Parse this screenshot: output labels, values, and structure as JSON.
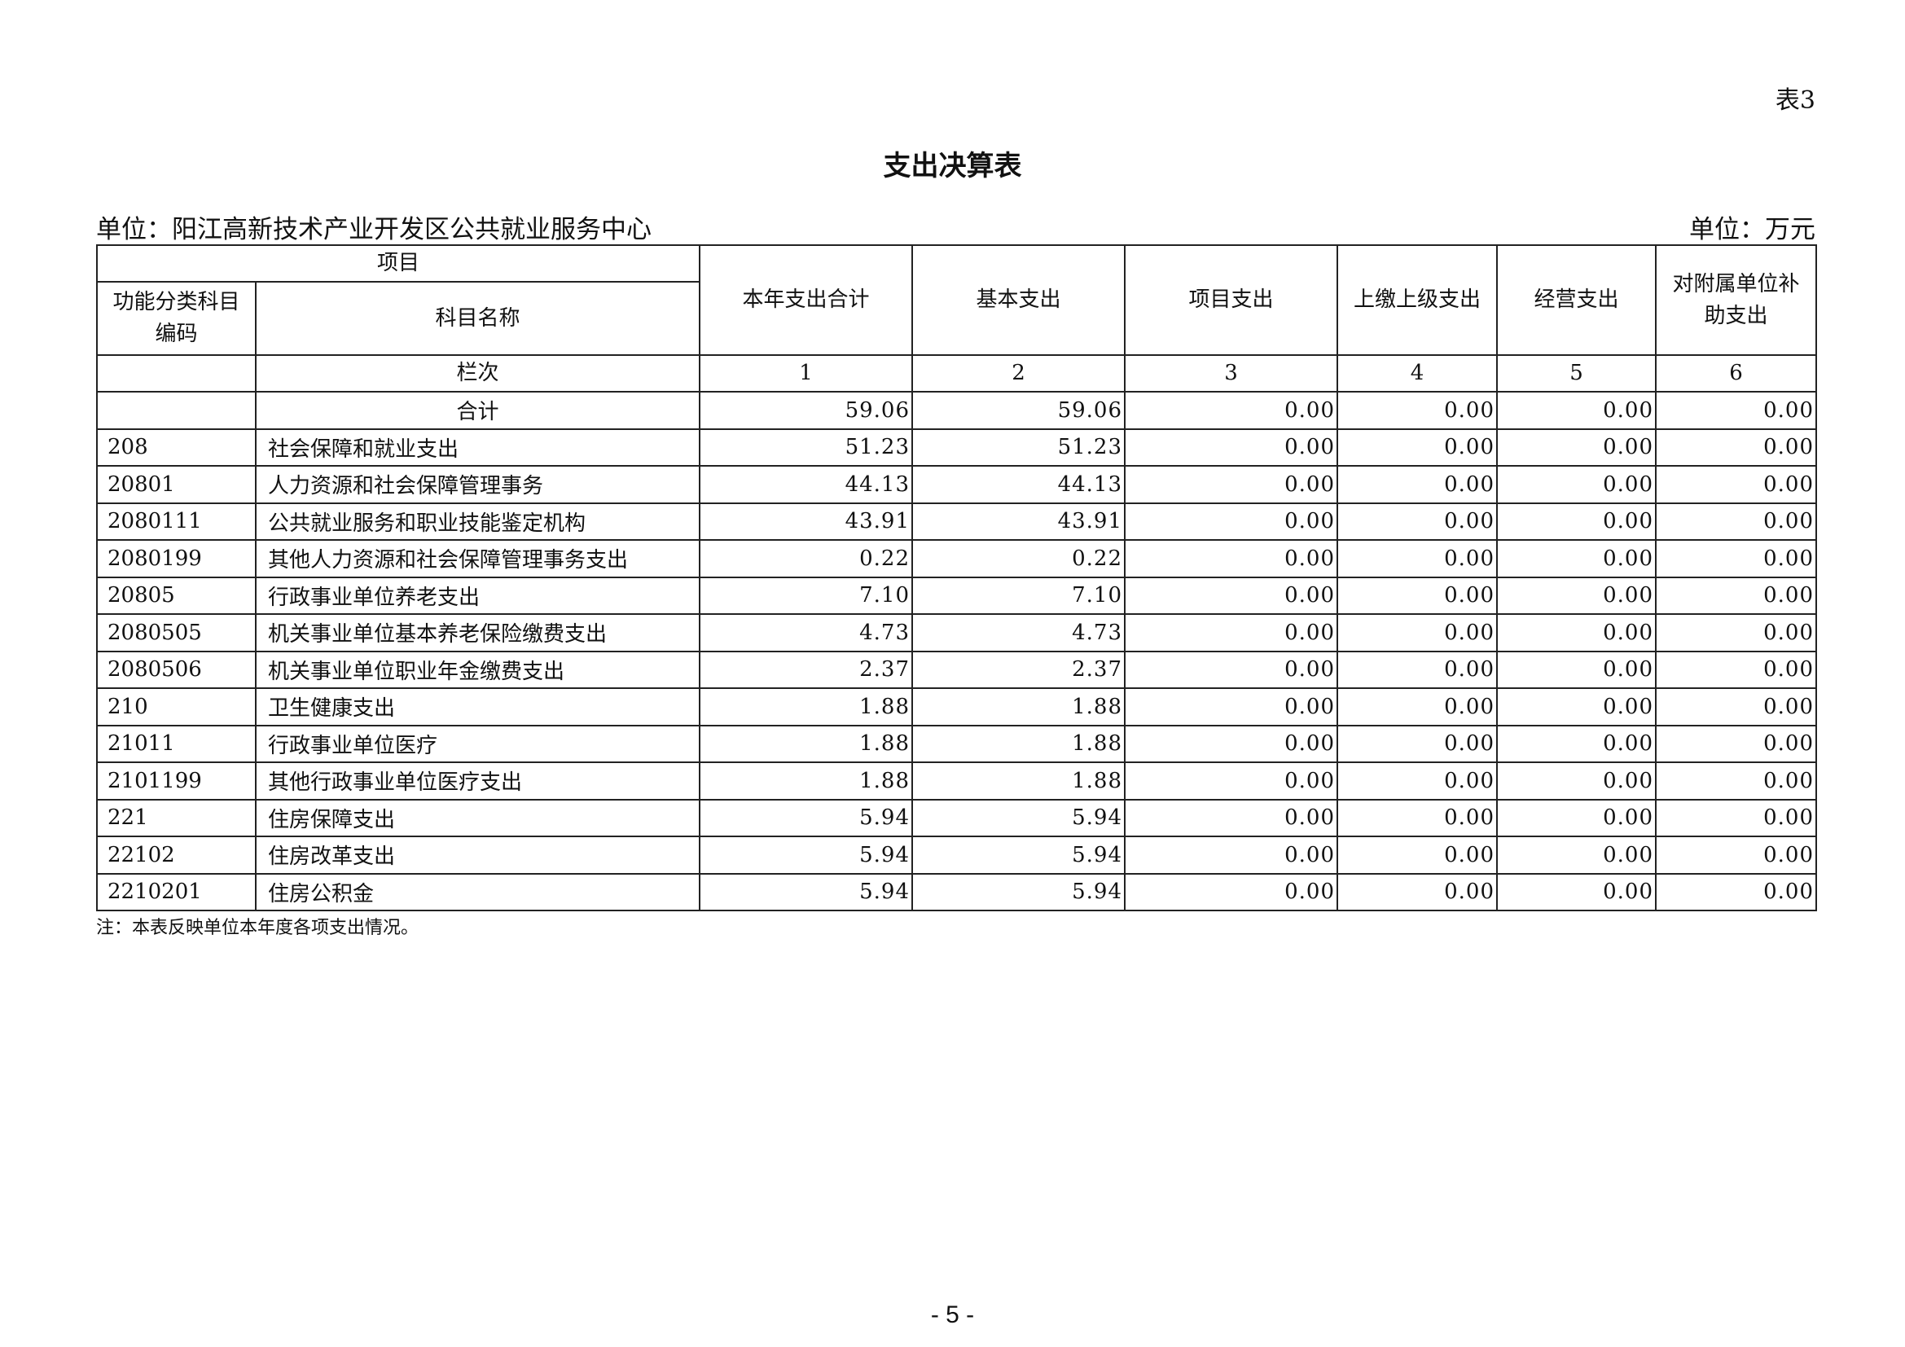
{
  "table_no": "表3",
  "title": "支出决算表",
  "unit_left": "单位：阳江高新技术产业开发区公共就业服务中心",
  "unit_right": "单位：万元",
  "header": {
    "project": "项目",
    "code": "功能分类科目编码",
    "name": "科目名称",
    "col_total": "本年支出合计",
    "col_basic": "基本支出",
    "col_project": "项目支出",
    "col_upper": "上缴上级支出",
    "col_business": "经营支出",
    "col_subsidy": "对附属单位补助支出",
    "seq_label": "栏次",
    "seq": [
      "1",
      "2",
      "3",
      "4",
      "5",
      "6"
    ]
  },
  "total_row": {
    "label": "合计",
    "values": [
      "59.06",
      "59.06",
      "0.00",
      "0.00",
      "0.00",
      "0.00"
    ]
  },
  "rows": [
    {
      "code": "208",
      "name": "社会保障和就业支出",
      "values": [
        "51.23",
        "51.23",
        "0.00",
        "0.00",
        "0.00",
        "0.00"
      ]
    },
    {
      "code": "20801",
      "name": "人力资源和社会保障管理事务",
      "values": [
        "44.13",
        "44.13",
        "0.00",
        "0.00",
        "0.00",
        "0.00"
      ]
    },
    {
      "code": "2080111",
      "name": "公共就业服务和职业技能鉴定机构",
      "values": [
        "43.91",
        "43.91",
        "0.00",
        "0.00",
        "0.00",
        "0.00"
      ]
    },
    {
      "code": "2080199",
      "name": "其他人力资源和社会保障管理事务支出",
      "values": [
        "0.22",
        "0.22",
        "0.00",
        "0.00",
        "0.00",
        "0.00"
      ]
    },
    {
      "code": "20805",
      "name": "行政事业单位养老支出",
      "values": [
        "7.10",
        "7.10",
        "0.00",
        "0.00",
        "0.00",
        "0.00"
      ]
    },
    {
      "code": "2080505",
      "name": "机关事业单位基本养老保险缴费支出",
      "values": [
        "4.73",
        "4.73",
        "0.00",
        "0.00",
        "0.00",
        "0.00"
      ]
    },
    {
      "code": "2080506",
      "name": "机关事业单位职业年金缴费支出",
      "values": [
        "2.37",
        "2.37",
        "0.00",
        "0.00",
        "0.00",
        "0.00"
      ]
    },
    {
      "code": "210",
      "name": "卫生健康支出",
      "values": [
        "1.88",
        "1.88",
        "0.00",
        "0.00",
        "0.00",
        "0.00"
      ]
    },
    {
      "code": "21011",
      "name": "行政事业单位医疗",
      "values": [
        "1.88",
        "1.88",
        "0.00",
        "0.00",
        "0.00",
        "0.00"
      ]
    },
    {
      "code": "2101199",
      "name": "其他行政事业单位医疗支出",
      "values": [
        "1.88",
        "1.88",
        "0.00",
        "0.00",
        "0.00",
        "0.00"
      ]
    },
    {
      "code": "221",
      "name": "住房保障支出",
      "values": [
        "5.94",
        "5.94",
        "0.00",
        "0.00",
        "0.00",
        "0.00"
      ]
    },
    {
      "code": "22102",
      "name": "住房改革支出",
      "values": [
        "5.94",
        "5.94",
        "0.00",
        "0.00",
        "0.00",
        "0.00"
      ]
    },
    {
      "code": "2210201",
      "name": "住房公积金",
      "values": [
        "5.94",
        "5.94",
        "0.00",
        "0.00",
        "0.00",
        "0.00"
      ]
    }
  ],
  "note": "注：本表反映单位本年度各项支出情况。",
  "page_number": "- 5 -"
}
